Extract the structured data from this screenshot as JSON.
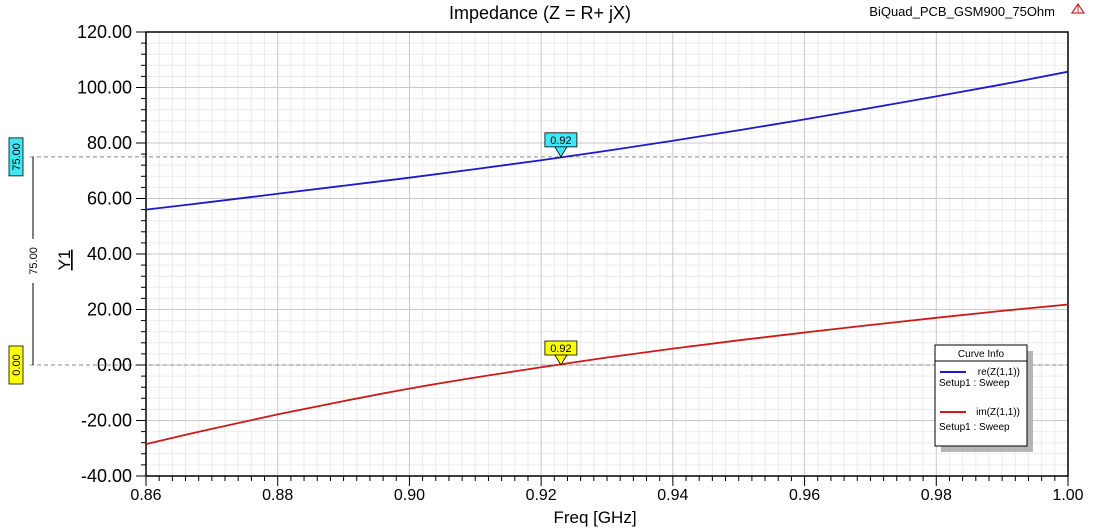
{
  "chart_data": {
    "type": "line",
    "title": "Impedance (Z = R+ jX)",
    "design_name": "BiQuad_PCB_GSM900_75Ohm",
    "xlabel": "Freq [GHz]",
    "ylabel": "Y1",
    "xlim": [
      0.86,
      1.0
    ],
    "ylim": [
      -40,
      120
    ],
    "x_ticks": [
      "0.86",
      "0.88",
      "0.90",
      "0.92",
      "0.94",
      "0.96",
      "0.98",
      "1.00"
    ],
    "y_ticks": [
      "120.00",
      "100.00",
      "80.00",
      "60.00",
      "40.00",
      "20.00",
      "0.00",
      "-20.00",
      "-40.00"
    ],
    "grid": true,
    "legend": {
      "title": "Curve Info",
      "placement": "bottom-right",
      "entries": [
        {
          "label": "re(Z(1,1))",
          "sub": "Setup1 : Sweep",
          "color": "#1a1acc"
        },
        {
          "label": "im(Z(1,1))",
          "sub": "Setup1 : Sweep",
          "color": "#cc1a1a"
        }
      ]
    },
    "series": [
      {
        "name": "re(Z(1,1))",
        "color": "#1a1acc",
        "x": [
          0.86,
          0.87,
          0.88,
          0.89,
          0.9,
          0.91,
          0.92,
          0.93,
          0.94,
          0.95,
          0.96,
          0.97,
          0.98,
          0.99,
          1.0
        ],
        "y": [
          56.0,
          58.8,
          61.7,
          64.6,
          67.5,
          70.6,
          73.8,
          77.2,
          80.8,
          84.6,
          88.5,
          92.6,
          96.8,
          101.1,
          105.7
        ]
      },
      {
        "name": "im(Z(1,1))",
        "color": "#cc1a1a",
        "x": [
          0.86,
          0.87,
          0.88,
          0.89,
          0.9,
          0.91,
          0.92,
          0.93,
          0.94,
          0.95,
          0.96,
          0.97,
          0.98,
          0.99,
          1.0
        ],
        "y": [
          -28.5,
          -23.0,
          -17.8,
          -13.0,
          -8.5,
          -4.5,
          -0.8,
          2.7,
          5.9,
          8.9,
          11.7,
          14.4,
          17.0,
          19.5,
          21.8
        ]
      }
    ],
    "markers": [
      {
        "label": "0.92",
        "x": 0.923,
        "y": 75.0,
        "color": "#3ee8f5",
        "series": "re(Z(1,1))"
      },
      {
        "label": "0.92",
        "x": 0.923,
        "y": 0.0,
        "color": "#ffff00",
        "series": "im(Z(1,1))"
      }
    ],
    "reference_lines": [
      {
        "y": 75.0,
        "label": "75.00",
        "color": "#3ee8f5"
      },
      {
        "y": 0.0,
        "label": "0.00",
        "color": "#ffff00"
      }
    ],
    "delta_label": "75.00"
  }
}
